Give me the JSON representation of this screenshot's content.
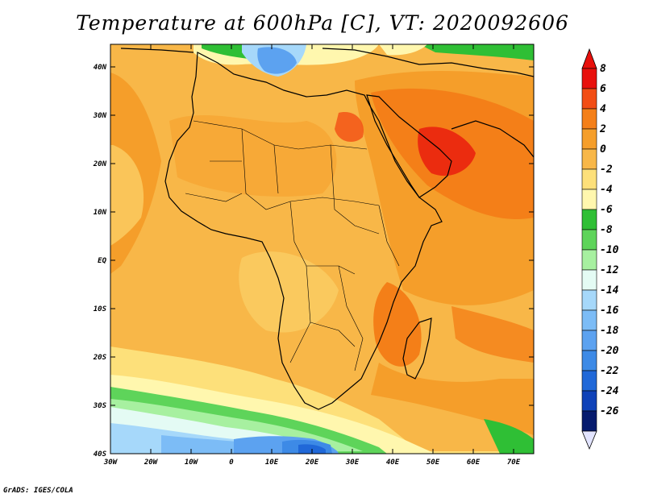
{
  "title": "Temperature at 600hPa [C], VT: 2020092606",
  "footer": "GrADS: IGES/COLA",
  "map": {
    "lat_ticks": [
      "40N",
      "30N",
      "20N",
      "10N",
      "EQ",
      "10S",
      "20S",
      "30S",
      "40S"
    ],
    "lon_ticks": [
      "30W",
      "20W",
      "10W",
      "0",
      "10E",
      "20E",
      "30E",
      "40E",
      "50E",
      "60E",
      "70E"
    ]
  },
  "colorbar": {
    "labels": [
      "8",
      "6",
      "4",
      "2",
      "0",
      "-2",
      "-4",
      "-6",
      "-8",
      "-10",
      "-12",
      "-14",
      "-16",
      "-18",
      "-20",
      "-22",
      "-24",
      "-26"
    ],
    "colors": [
      "#e8100c",
      "#f24d14",
      "#f47f18",
      "#f59e2a",
      "#f8b748",
      "#fde07a",
      "#fff7ae",
      "#2fbf35",
      "#5ed45a",
      "#a7f0a0",
      "#e4fbf4",
      "#a6d8fa",
      "#7cbcf6",
      "#5ca2f0",
      "#3d8ae6",
      "#2068d8",
      "#0f42b8",
      "#061b6e"
    ],
    "top_color": "#e8100c",
    "bottom_color": "#e2e4ff"
  }
}
